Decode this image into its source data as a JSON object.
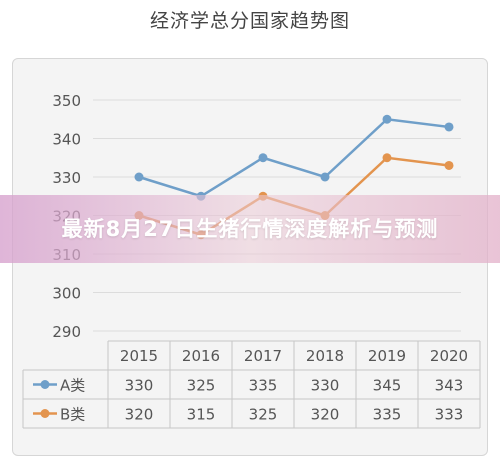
{
  "title": "经济学总分国家趋势图",
  "banner": "最新8月27日生猪行情深度解析与预测",
  "chart_data": {
    "type": "line",
    "categories": [
      "2015",
      "2016",
      "2017",
      "2018",
      "2019",
      "2020"
    ],
    "series": [
      {
        "name": "A类",
        "values": [
          330,
          325,
          335,
          330,
          345,
          343
        ],
        "color": "#6f9fc9"
      },
      {
        "name": "B类",
        "values": [
          320,
          315,
          325,
          320,
          335,
          333
        ],
        "color": "#e3944e"
      }
    ],
    "yticks": [
      290,
      300,
      310,
      320,
      330,
      340,
      350
    ],
    "ylim": [
      290,
      350
    ],
    "grid": true,
    "legend": "data-table"
  }
}
